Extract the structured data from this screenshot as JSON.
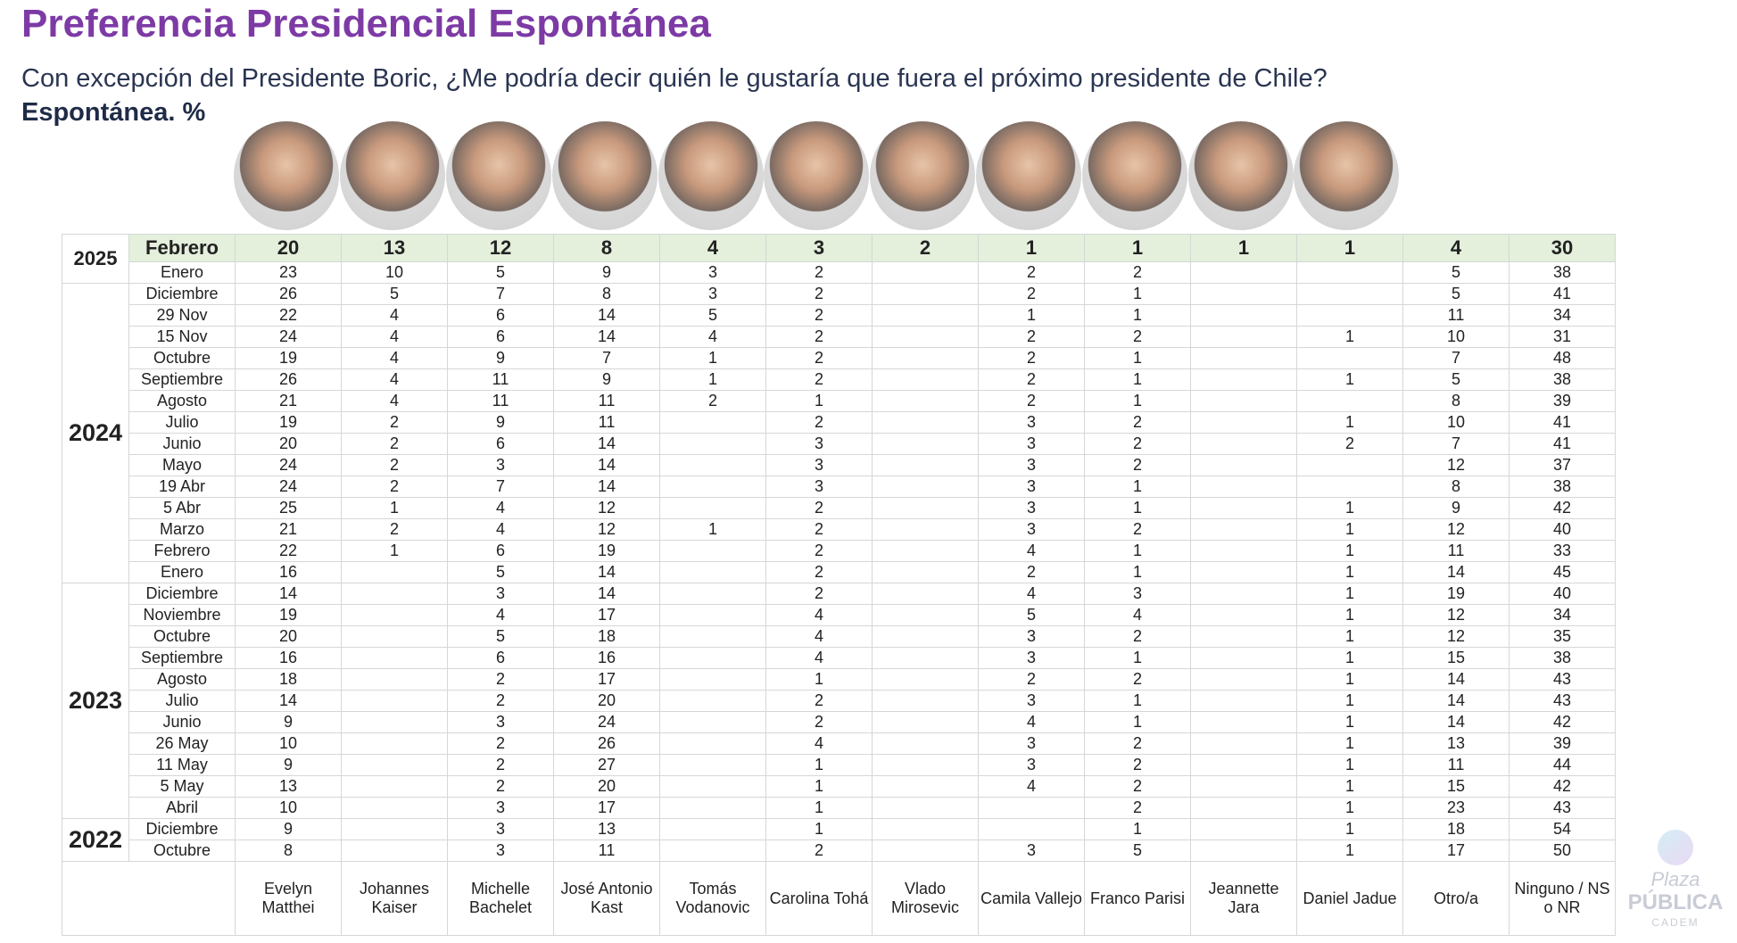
{
  "title": "Preferencia Presidencial Espontánea",
  "subtitle": "Con excepción del Presidente Boric, ¿Me podría decir quién le gustaría que fuera el próximo presidente de Chile?",
  "subtitle2": "Espontánea. %",
  "columns": [
    "Evelyn Matthei",
    "Johannes Kaiser",
    "Michelle Bachelet",
    "José Antonio Kast",
    "Tomás Vodanovic",
    "Carolina Tohá",
    "Vlado Mirosevic",
    "Camila Vallejo",
    "Franco Parisi",
    "Jeannette Jara",
    "Daniel Jadue",
    "Otro/a",
    "Ninguno / NS o NR"
  ],
  "photo_count": 11,
  "groups": [
    {
      "year": "2025",
      "rows": [
        {
          "month": "Febrero",
          "values": [
            "20",
            "13",
            "12",
            "8",
            "4",
            "3",
            "2",
            "1",
            "1",
            "1",
            "1",
            "4",
            "30"
          ]
        },
        {
          "month": "Enero",
          "values": [
            "23",
            "10",
            "5",
            "9",
            "3",
            "2",
            "",
            "2",
            "2",
            "",
            "",
            "5",
            "38"
          ]
        }
      ]
    },
    {
      "year": "2024",
      "rows": [
        {
          "month": "Diciembre",
          "values": [
            "26",
            "5",
            "7",
            "8",
            "3",
            "2",
            "",
            "2",
            "1",
            "",
            "",
            "5",
            "41"
          ]
        },
        {
          "month": "29 Nov",
          "values": [
            "22",
            "4",
            "6",
            "14",
            "5",
            "2",
            "",
            "1",
            "1",
            "",
            "",
            "11",
            "34"
          ]
        },
        {
          "month": "15 Nov",
          "values": [
            "24",
            "4",
            "6",
            "14",
            "4",
            "2",
            "",
            "2",
            "2",
            "",
            "1",
            "10",
            "31"
          ]
        },
        {
          "month": "Octubre",
          "values": [
            "19",
            "4",
            "9",
            "7",
            "1",
            "2",
            "",
            "2",
            "1",
            "",
            "",
            "7",
            "48"
          ]
        },
        {
          "month": "Septiembre",
          "values": [
            "26",
            "4",
            "11",
            "9",
            "1",
            "2",
            "",
            "2",
            "1",
            "",
            "1",
            "5",
            "38"
          ]
        },
        {
          "month": "Agosto",
          "values": [
            "21",
            "4",
            "11",
            "11",
            "2",
            "1",
            "",
            "2",
            "1",
            "",
            "",
            "8",
            "39"
          ]
        },
        {
          "month": "Julio",
          "values": [
            "19",
            "2",
            "9",
            "11",
            "",
            "2",
            "",
            "3",
            "2",
            "",
            "1",
            "10",
            "41"
          ]
        },
        {
          "month": "Junio",
          "values": [
            "20",
            "2",
            "6",
            "14",
            "",
            "3",
            "",
            "3",
            "2",
            "",
            "2",
            "7",
            "41"
          ]
        },
        {
          "month": "Mayo",
          "values": [
            "24",
            "2",
            "3",
            "14",
            "",
            "3",
            "",
            "3",
            "2",
            "",
            "",
            "12",
            "37"
          ]
        },
        {
          "month": "19 Abr",
          "values": [
            "24",
            "2",
            "7",
            "14",
            "",
            "3",
            "",
            "3",
            "1",
            "",
            "",
            "8",
            "38"
          ]
        },
        {
          "month": "5 Abr",
          "values": [
            "25",
            "1",
            "4",
            "12",
            "",
            "2",
            "",
            "3",
            "1",
            "",
            "1",
            "9",
            "42"
          ]
        },
        {
          "month": "Marzo",
          "values": [
            "21",
            "2",
            "4",
            "12",
            "1",
            "2",
            "",
            "3",
            "2",
            "",
            "1",
            "12",
            "40"
          ]
        },
        {
          "month": "Febrero",
          "values": [
            "22",
            "1",
            "6",
            "19",
            "",
            "2",
            "",
            "4",
            "1",
            "",
            "1",
            "11",
            "33"
          ]
        },
        {
          "month": "Enero",
          "values": [
            "16",
            "",
            "5",
            "14",
            "",
            "2",
            "",
            "2",
            "1",
            "",
            "1",
            "14",
            "45"
          ]
        }
      ]
    },
    {
      "year": "2023",
      "rows": [
        {
          "month": "Diciembre",
          "values": [
            "14",
            "",
            "3",
            "14",
            "",
            "2",
            "",
            "4",
            "3",
            "",
            "1",
            "19",
            "40"
          ]
        },
        {
          "month": "Noviembre",
          "values": [
            "19",
            "",
            "4",
            "17",
            "",
            "4",
            "",
            "5",
            "4",
            "",
            "1",
            "12",
            "34"
          ]
        },
        {
          "month": "Octubre",
          "values": [
            "20",
            "",
            "5",
            "18",
            "",
            "4",
            "",
            "3",
            "2",
            "",
            "1",
            "12",
            "35"
          ]
        },
        {
          "month": "Septiembre",
          "values": [
            "16",
            "",
            "6",
            "16",
            "",
            "4",
            "",
            "3",
            "1",
            "",
            "1",
            "15",
            "38"
          ]
        },
        {
          "month": "Agosto",
          "values": [
            "18",
            "",
            "2",
            "17",
            "",
            "1",
            "",
            "2",
            "2",
            "",
            "1",
            "14",
            "43"
          ]
        },
        {
          "month": "Julio",
          "values": [
            "14",
            "",
            "2",
            "20",
            "",
            "2",
            "",
            "3",
            "1",
            "",
            "1",
            "14",
            "43"
          ]
        },
        {
          "month": "Junio",
          "values": [
            "9",
            "",
            "3",
            "24",
            "",
            "2",
            "",
            "4",
            "1",
            "",
            "1",
            "14",
            "42"
          ]
        },
        {
          "month": "26 May",
          "values": [
            "10",
            "",
            "2",
            "26",
            "",
            "4",
            "",
            "3",
            "2",
            "",
            "1",
            "13",
            "39"
          ]
        },
        {
          "month": "11 May",
          "values": [
            "9",
            "",
            "2",
            "27",
            "",
            "1",
            "",
            "3",
            "2",
            "",
            "1",
            "11",
            "44"
          ]
        },
        {
          "month": "5 May",
          "values": [
            "13",
            "",
            "2",
            "20",
            "",
            "1",
            "",
            "4",
            "2",
            "",
            "1",
            "15",
            "42"
          ]
        },
        {
          "month": "Abril",
          "values": [
            "10",
            "",
            "3",
            "17",
            "",
            "1",
            "",
            "",
            "2",
            "",
            "1",
            "23",
            "43"
          ]
        }
      ]
    },
    {
      "year": "2022",
      "rows": [
        {
          "month": "Diciembre",
          "values": [
            "9",
            "",
            "3",
            "13",
            "",
            "1",
            "",
            "",
            "1",
            "",
            "1",
            "18",
            "54"
          ]
        },
        {
          "month": "Octubre",
          "values": [
            "8",
            "",
            "3",
            "11",
            "",
            "2",
            "",
            "3",
            "5",
            "",
            "1",
            "17",
            "50"
          ]
        }
      ]
    }
  ],
  "watermark": {
    "line1": "Plaza",
    "line2": "PÚBLICA",
    "line3": "CADEM"
  }
}
